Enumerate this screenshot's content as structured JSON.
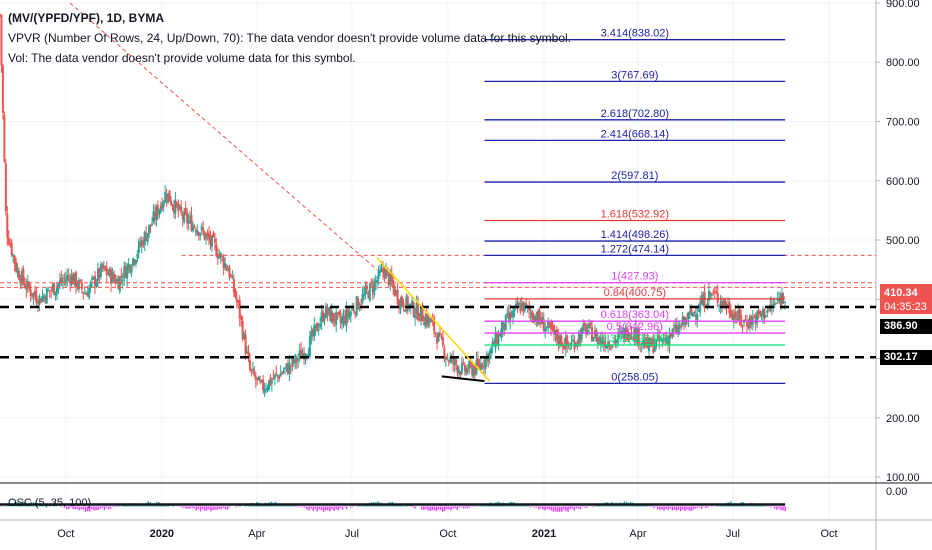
{
  "header": {
    "symbol": "(MV/(YPFD/YPF), 1D, BYMA",
    "vpvr_text": "VPVR (Number Of Rows, 24, Up/Down, 70): The data vendor doesn't provide volume data for this symbol.",
    "vol_text": "Vol: The data vendor doesn't provide volume data for this symbol.",
    "osc_label": "OSC (5, 35, 100)"
  },
  "price_tags": {
    "last": "410.34",
    "countdown": "04:35:23",
    "level_upper": "386.90",
    "level_lower": "302.17"
  },
  "colors": {
    "candle_up": "#26a69a",
    "candle_down": "#ef5350",
    "fib_blue": "#1e22aa",
    "fib_red": "#e53935",
    "fib_magenta": "#e040fb",
    "fib_green": "#00e676",
    "trend_red": "#ef5350",
    "yellow": "#ffd600",
    "price_tag": "#ef5350",
    "level_tag": "#000000"
  },
  "chart_data": {
    "type": "candlestick",
    "y_axis_ticks": [
      900,
      800,
      700,
      600,
      500,
      400,
      300,
      200,
      100
    ],
    "y_axis_labels": [
      "900.00",
      "800.00",
      "700.00",
      "600.00",
      "500.00",
      "400.00",
      "300.00",
      "200.00",
      "100.00"
    ],
    "ylim": [
      90,
      905
    ],
    "x_axis_labels": [
      {
        "text": "Oct",
        "date": "2019-10-01"
      },
      {
        "text": "2020",
        "date": "2020-01-01"
      },
      {
        "text": "Apr",
        "date": "2020-04-01"
      },
      {
        "text": "Jul",
        "date": "2020-07-01"
      },
      {
        "text": "Oct",
        "date": "2020-10-01"
      },
      {
        "text": "2021",
        "date": "2021-01-01"
      },
      {
        "text": "Apr",
        "date": "2021-04-01"
      },
      {
        "text": "Jul",
        "date": "2021-07-01"
      },
      {
        "text": "Oct",
        "date": "2021-10-01"
      }
    ],
    "x_range": [
      "2019-07-30",
      "2021-11-15"
    ],
    "osc_axis_label": "0.00",
    "price_path": [
      [
        "2019-07-30",
        880
      ],
      [
        "2019-08-05",
        520
      ],
      [
        "2019-08-15",
        450
      ],
      [
        "2019-08-25",
        420
      ],
      [
        "2019-09-05",
        400
      ],
      [
        "2019-09-20",
        420
      ],
      [
        "2019-10-05",
        440
      ],
      [
        "2019-10-20",
        410
      ],
      [
        "2019-11-05",
        450
      ],
      [
        "2019-11-20",
        430
      ],
      [
        "2019-12-05",
        470
      ],
      [
        "2019-12-20",
        520
      ],
      [
        "2020-01-05",
        580
      ],
      [
        "2020-01-20",
        540
      ],
      [
        "2020-02-05",
        520
      ],
      [
        "2020-02-20",
        490
      ],
      [
        "2020-03-05",
        450
      ],
      [
        "2020-03-15",
        380
      ],
      [
        "2020-03-25",
        280
      ],
      [
        "2020-04-05",
        250
      ],
      [
        "2020-04-20",
        270
      ],
      [
        "2020-05-05",
        290
      ],
      [
        "2020-05-20",
        320
      ],
      [
        "2020-06-05",
        380
      ],
      [
        "2020-06-20",
        360
      ],
      [
        "2020-07-05",
        390
      ],
      [
        "2020-07-20",
        420
      ],
      [
        "2020-08-01",
        450
      ],
      [
        "2020-08-15",
        400
      ],
      [
        "2020-09-01",
        380
      ],
      [
        "2020-09-15",
        360
      ],
      [
        "2020-10-01",
        300
      ],
      [
        "2020-10-15",
        280
      ],
      [
        "2020-10-30",
        285
      ],
      [
        "2020-11-10",
        310
      ],
      [
        "2020-11-25",
        360
      ],
      [
        "2020-12-10",
        390
      ],
      [
        "2020-12-25",
        370
      ],
      [
        "2021-01-10",
        340
      ],
      [
        "2021-01-25",
        320
      ],
      [
        "2021-02-10",
        350
      ],
      [
        "2021-02-25",
        330
      ],
      [
        "2021-03-10",
        330
      ],
      [
        "2021-03-25",
        350
      ],
      [
        "2021-04-10",
        320
      ],
      [
        "2021-04-25",
        330
      ],
      [
        "2021-05-10",
        350
      ],
      [
        "2021-05-25",
        380
      ],
      [
        "2021-06-10",
        410
      ],
      [
        "2021-06-25",
        390
      ],
      [
        "2021-07-10",
        360
      ],
      [
        "2021-07-25",
        370
      ],
      [
        "2021-08-10",
        390
      ],
      [
        "2021-08-20",
        410
      ]
    ],
    "horizontal_levels": [
      {
        "name": "dashed-level-upper",
        "price": 386.9,
        "color": "#000000",
        "style": "dashed-thick"
      },
      {
        "name": "dashed-level-lower",
        "price": 302.17,
        "color": "#000000",
        "style": "dashed-thick"
      },
      {
        "name": "red-dotted-level-a",
        "price": 474.14,
        "color": "#ef5350",
        "style": "dotted",
        "from": "2020-01-20"
      },
      {
        "name": "red-dotted-level-b",
        "price": 427.93,
        "color": "#ef5350",
        "style": "dotted",
        "from": "2019-07-30"
      },
      {
        "name": "red-dotted-level-c",
        "price": 420.0,
        "color": "#ef5350",
        "style": "dotted",
        "from": "2019-07-30"
      }
    ],
    "fib_start": "2020-11-05",
    "fib_end": "2021-08-20",
    "fib_levels": [
      {
        "label": "3.414(838.02)",
        "price": 838.02,
        "color": "#1e22aa"
      },
      {
        "label": "3(767.69)",
        "price": 767.69,
        "color": "#1e22aa"
      },
      {
        "label": "2.618(702.80)",
        "price": 702.8,
        "color": "#1e22aa"
      },
      {
        "label": "2.414(668.14)",
        "price": 668.14,
        "color": "#1e22aa"
      },
      {
        "label": "2(597.81)",
        "price": 597.81,
        "color": "#1e22aa"
      },
      {
        "label": "1.618(532.92)",
        "price": 532.92,
        "color": "#e53935"
      },
      {
        "label": "1.414(498.26)",
        "price": 498.26,
        "color": "#1e22aa"
      },
      {
        "label": "1.272(474.14)",
        "price": 474.14,
        "color": "#1e22aa"
      },
      {
        "label": "1(427.93)",
        "price": 427.93,
        "color": "#e040fb"
      },
      {
        "label": "0.84(400.75)",
        "price": 400.75,
        "color": "#e53935"
      },
      {
        "label": "0.618(363.04)",
        "price": 363.04,
        "color": "#e040fb"
      },
      {
        "label": "0.5(342.96)",
        "price": 342.96,
        "color": "#e040fb"
      },
      {
        "label": "0.382(322.86)",
        "price": 322.86,
        "color": "#00e676"
      },
      {
        "label": "0(258.05)",
        "price": 258.05,
        "color": "#1e22aa"
      }
    ],
    "trendlines": [
      {
        "name": "red-downtrend-line",
        "from": [
          "2019-10-05",
          900
        ],
        "to": [
          "2020-07-25",
          450
        ],
        "color": "#ef5350",
        "style": "dashed"
      },
      {
        "name": "yellow-line",
        "from": [
          "2020-07-25",
          470
        ],
        "to": [
          "2020-11-10",
          262
        ],
        "color": "#ffd600",
        "style": "solid"
      },
      {
        "name": "black-base-line",
        "from": [
          "2020-09-25",
          270
        ],
        "to": [
          "2020-11-05",
          262
        ],
        "color": "#000000",
        "style": "solid"
      }
    ]
  }
}
